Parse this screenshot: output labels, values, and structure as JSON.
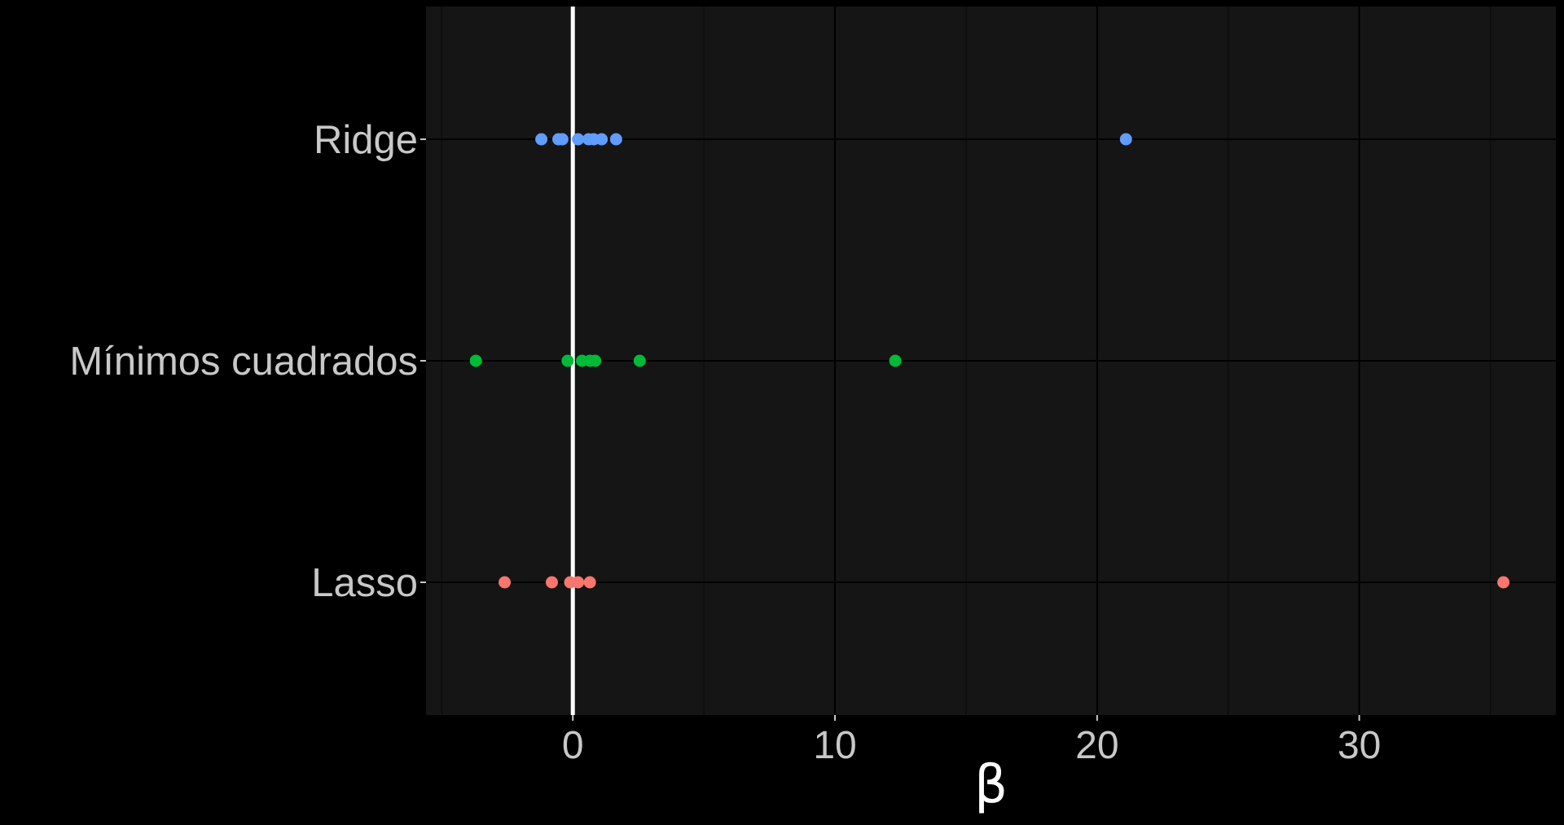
{
  "chart_data": {
    "type": "scatter",
    "title": "",
    "xlabel": "β",
    "ylabel": "",
    "xlim": [
      -5.6,
      37.5
    ],
    "x_ticks": [
      0,
      10,
      20,
      30
    ],
    "x_tick_labels": [
      "0",
      "10",
      "20",
      "30"
    ],
    "categories": [
      "Lasso",
      "Mínimos cuadrados",
      "Ridge"
    ],
    "reference_line": {
      "x": 0,
      "color": "#ffffff"
    },
    "grid": true,
    "legend": "none",
    "colors": {
      "background": "#000000",
      "panel": "#151515",
      "grid_major": "#000000",
      "grid_minor": "#0b0b0b",
      "tick_text": "#c8c8c8",
      "axis_title": "#ffffff"
    },
    "series": [
      {
        "category": "Ridge",
        "color": "#619CFF",
        "x": [
          -1.2,
          -0.55,
          -0.4,
          0.2,
          0.6,
          0.8,
          1.1,
          1.65,
          21.1
        ]
      },
      {
        "category": "Mínimos cuadrados",
        "color": "#00BA38",
        "x": [
          -3.7,
          -0.2,
          0.35,
          0.65,
          0.85,
          2.55,
          12.3
        ]
      },
      {
        "category": "Lasso",
        "color": "#F8766D",
        "x": [
          -2.6,
          -0.8,
          -0.1,
          0.2,
          0.65,
          35.5
        ]
      }
    ]
  }
}
